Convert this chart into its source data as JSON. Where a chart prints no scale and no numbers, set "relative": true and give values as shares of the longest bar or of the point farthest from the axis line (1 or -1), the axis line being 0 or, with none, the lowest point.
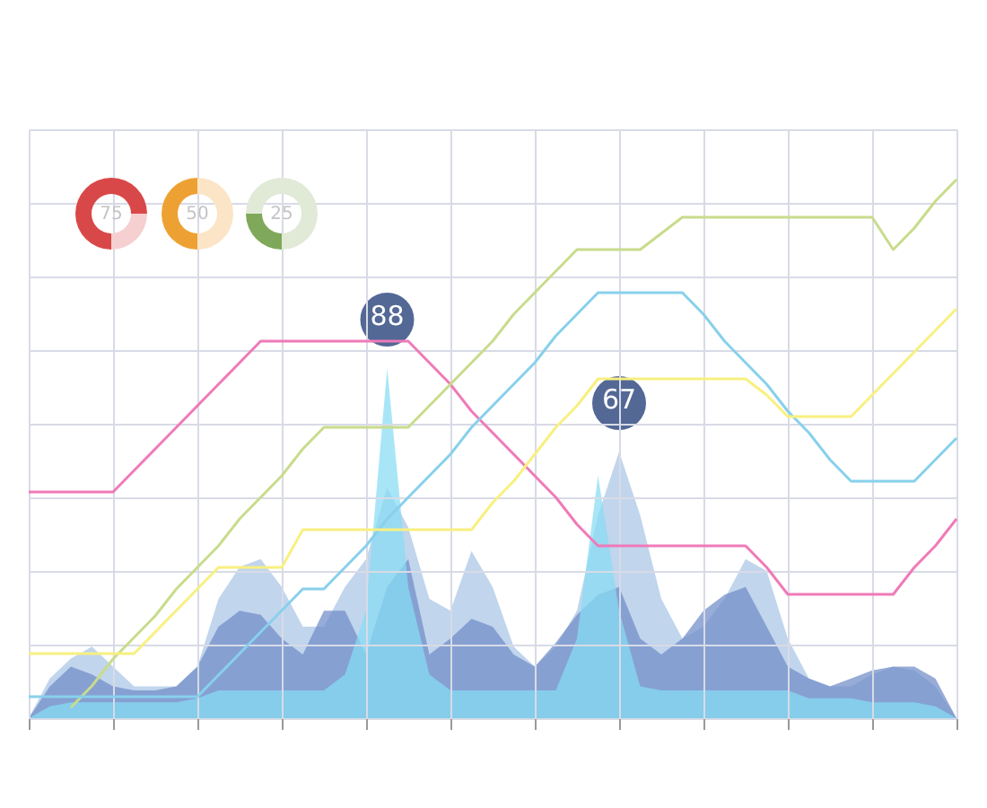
{
  "chart_data": [
    {
      "type": "area",
      "categories": [
        null,
        null,
        null,
        null,
        null,
        null,
        null,
        null,
        null,
        null,
        null,
        null,
        null,
        null,
        null,
        null,
        null,
        null,
        null,
        null,
        null,
        null,
        null,
        null,
        null,
        null,
        null,
        null,
        null,
        null,
        null,
        null,
        null,
        null,
        null,
        null,
        null,
        null,
        null,
        null,
        null,
        null,
        null,
        null,
        null
      ],
      "series": [
        {
          "color": "#a9c5e6",
          "values": [
            0,
            10,
            15,
            18,
            13,
            8,
            8,
            8,
            13,
            30,
            38,
            40,
            33,
            23,
            23,
            33,
            40,
            58,
            48,
            30,
            27,
            42,
            33,
            18,
            13,
            18,
            27,
            51,
            67,
            51,
            30,
            20,
            23,
            30,
            40,
            37,
            20,
            10,
            8,
            8,
            11,
            13,
            12,
            8,
            0
          ],
          "value_labels": [
            null,
            null,
            null,
            null,
            null,
            null,
            null,
            null,
            null,
            null,
            null,
            null,
            null,
            null,
            null,
            null,
            null,
            null,
            null,
            null,
            null,
            null,
            null,
            null,
            null,
            null,
            null,
            null,
            "67",
            null,
            null,
            null,
            null,
            null,
            null,
            null,
            null,
            null,
            null,
            null,
            null,
            null,
            null,
            null,
            null
          ]
        },
        {
          "color": "#6f8cc8",
          "values": [
            0,
            8,
            13,
            11,
            8,
            7,
            7,
            8,
            13,
            23,
            27,
            26,
            20,
            16,
            27,
            27,
            16,
            33,
            40,
            16,
            20,
            25,
            23,
            16,
            13,
            19,
            26,
            31,
            33,
            20,
            16,
            20,
            27,
            31,
            33,
            23,
            13,
            10,
            8,
            10,
            12,
            13,
            13,
            10,
            0
          ]
        },
        {
          "color": "#86dcf4",
          "values": [
            0,
            3,
            4,
            4,
            4,
            4,
            4,
            4,
            5,
            7,
            7,
            7,
            7,
            7,
            7,
            11,
            27,
            88,
            33,
            11,
            7,
            7,
            7,
            7,
            7,
            7,
            20,
            61,
            27,
            8,
            7,
            7,
            7,
            7,
            7,
            7,
            7,
            5,
            5,
            5,
            4,
            4,
            4,
            3,
            0
          ],
          "value_labels": [
            null,
            null,
            null,
            null,
            null,
            null,
            null,
            null,
            null,
            null,
            null,
            null,
            null,
            null,
            null,
            null,
            null,
            "88",
            null,
            null,
            null,
            null,
            null,
            null,
            null,
            null,
            null,
            null,
            null,
            null,
            null,
            null,
            null,
            null,
            null,
            null,
            null,
            null,
            null,
            null,
            null,
            null,
            null,
            null,
            null
          ]
        }
      ]
    },
    {
      "type": "line",
      "relative": true,
      "grid": true,
      "categories": [
        null,
        null,
        null,
        null,
        null,
        null,
        null,
        null,
        null,
        null,
        null,
        null,
        null,
        null,
        null,
        null,
        null,
        null,
        null,
        null,
        null,
        null,
        null,
        null,
        null,
        null,
        null,
        null,
        null,
        null,
        null,
        null,
        null,
        null,
        null,
        null,
        null,
        null,
        null,
        null,
        null,
        null,
        null,
        null,
        null
      ],
      "series": [
        {
          "color": "#f07ab8",
          "values": [
            0.42,
            0.42,
            0.42,
            0.42,
            0.42,
            0.46,
            0.5,
            0.54,
            0.58,
            0.62,
            0.66,
            0.7,
            0.7,
            0.7,
            0.7,
            0.7,
            0.7,
            0.7,
            0.7,
            0.66,
            0.62,
            0.57,
            0.53,
            0.49,
            0.45,
            0.41,
            0.36,
            0.32,
            0.32,
            0.32,
            0.32,
            0.32,
            0.32,
            0.32,
            0.32,
            0.28,
            0.23,
            0.23,
            0.23,
            0.23,
            0.23,
            0.23,
            0.28,
            0.32,
            0.37
          ]
        },
        {
          "color": "#c8dc8c",
          "values": [
            null,
            null,
            0.02,
            0.06,
            0.11,
            0.15,
            0.19,
            0.24,
            0.28,
            0.32,
            0.37,
            0.41,
            0.45,
            0.5,
            0.54,
            0.54,
            0.54,
            0.54,
            0.54,
            0.58,
            0.62,
            0.66,
            0.7,
            0.75,
            0.79,
            0.83,
            0.87,
            0.87,
            0.87,
            0.87,
            0.9,
            0.93,
            0.93,
            0.93,
            0.93,
            0.93,
            0.93,
            0.93,
            0.93,
            0.93,
            0.93,
            0.87,
            0.91,
            0.96,
            1.0
          ]
        },
        {
          "color": "#88d0ec",
          "values": [
            0.04,
            0.04,
            0.04,
            0.04,
            0.04,
            0.04,
            0.04,
            0.04,
            0.04,
            0.08,
            0.12,
            0.16,
            0.2,
            0.24,
            0.24,
            0.28,
            0.32,
            0.37,
            0.41,
            0.45,
            0.49,
            0.54,
            0.58,
            0.62,
            0.66,
            0.71,
            0.75,
            0.79,
            0.79,
            0.79,
            0.79,
            0.79,
            0.75,
            0.7,
            0.66,
            0.62,
            0.57,
            0.53,
            0.48,
            0.44,
            0.44,
            0.44,
            0.44,
            0.48,
            0.52
          ]
        },
        {
          "color": "#f8f080",
          "values": [
            0.12,
            0.12,
            0.12,
            0.12,
            0.12,
            0.12,
            0.16,
            0.2,
            0.24,
            0.28,
            0.28,
            0.28,
            0.28,
            0.35,
            0.35,
            0.35,
            0.35,
            0.35,
            0.35,
            0.35,
            0.35,
            0.35,
            0.4,
            0.44,
            0.49,
            0.54,
            0.58,
            0.63,
            0.63,
            0.63,
            0.63,
            0.63,
            0.63,
            0.63,
            0.63,
            0.6,
            0.56,
            0.56,
            0.56,
            0.56,
            0.6,
            0.64,
            0.68,
            0.72,
            0.76
          ]
        }
      ]
    },
    {
      "type": "donut",
      "categories": [
        null,
        null
      ],
      "values": [
        75,
        25
      ],
      "colors": [
        "#d94848",
        "#f6cfd1"
      ],
      "annotations": [
        "75"
      ]
    },
    {
      "type": "donut",
      "categories": [
        null,
        null
      ],
      "values": [
        50,
        50
      ],
      "colors": [
        "#eea133",
        "#fbe5c6"
      ],
      "annotations": [
        "50"
      ]
    },
    {
      "type": "donut",
      "categories": [
        null,
        null
      ],
      "values": [
        25,
        75
      ],
      "colors": [
        "#7fa85a",
        "#e1e9d7"
      ],
      "annotations": [
        "25"
      ]
    }
  ]
}
